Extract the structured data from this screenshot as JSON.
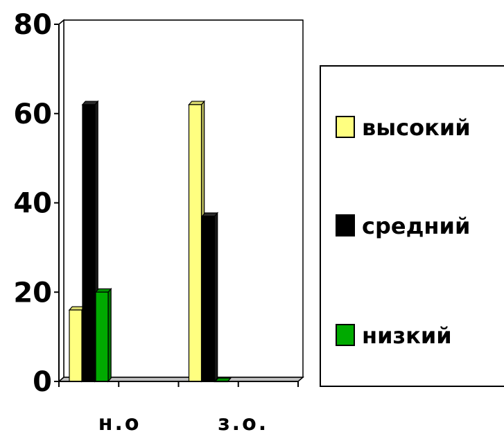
{
  "chart_data": {
    "type": "bar",
    "categories": [
      "н.о",
      "з.о."
    ],
    "series": [
      {
        "name": "высокий",
        "values": [
          16,
          62
        ],
        "color": "#FFFF80"
      },
      {
        "name": "средний",
        "values": [
          62,
          37
        ],
        "color": "#000000"
      },
      {
        "name": "низкий",
        "values": [
          20,
          0
        ],
        "color": "#00AA00"
      }
    ],
    "title": "",
    "xlabel": "",
    "ylabel": "",
    "ylim": [
      0,
      80
    ],
    "yticks": [
      "0",
      "20",
      "40",
      "60",
      "80"
    ],
    "grid": true,
    "legend_position": "right",
    "style": "3d-bar"
  }
}
